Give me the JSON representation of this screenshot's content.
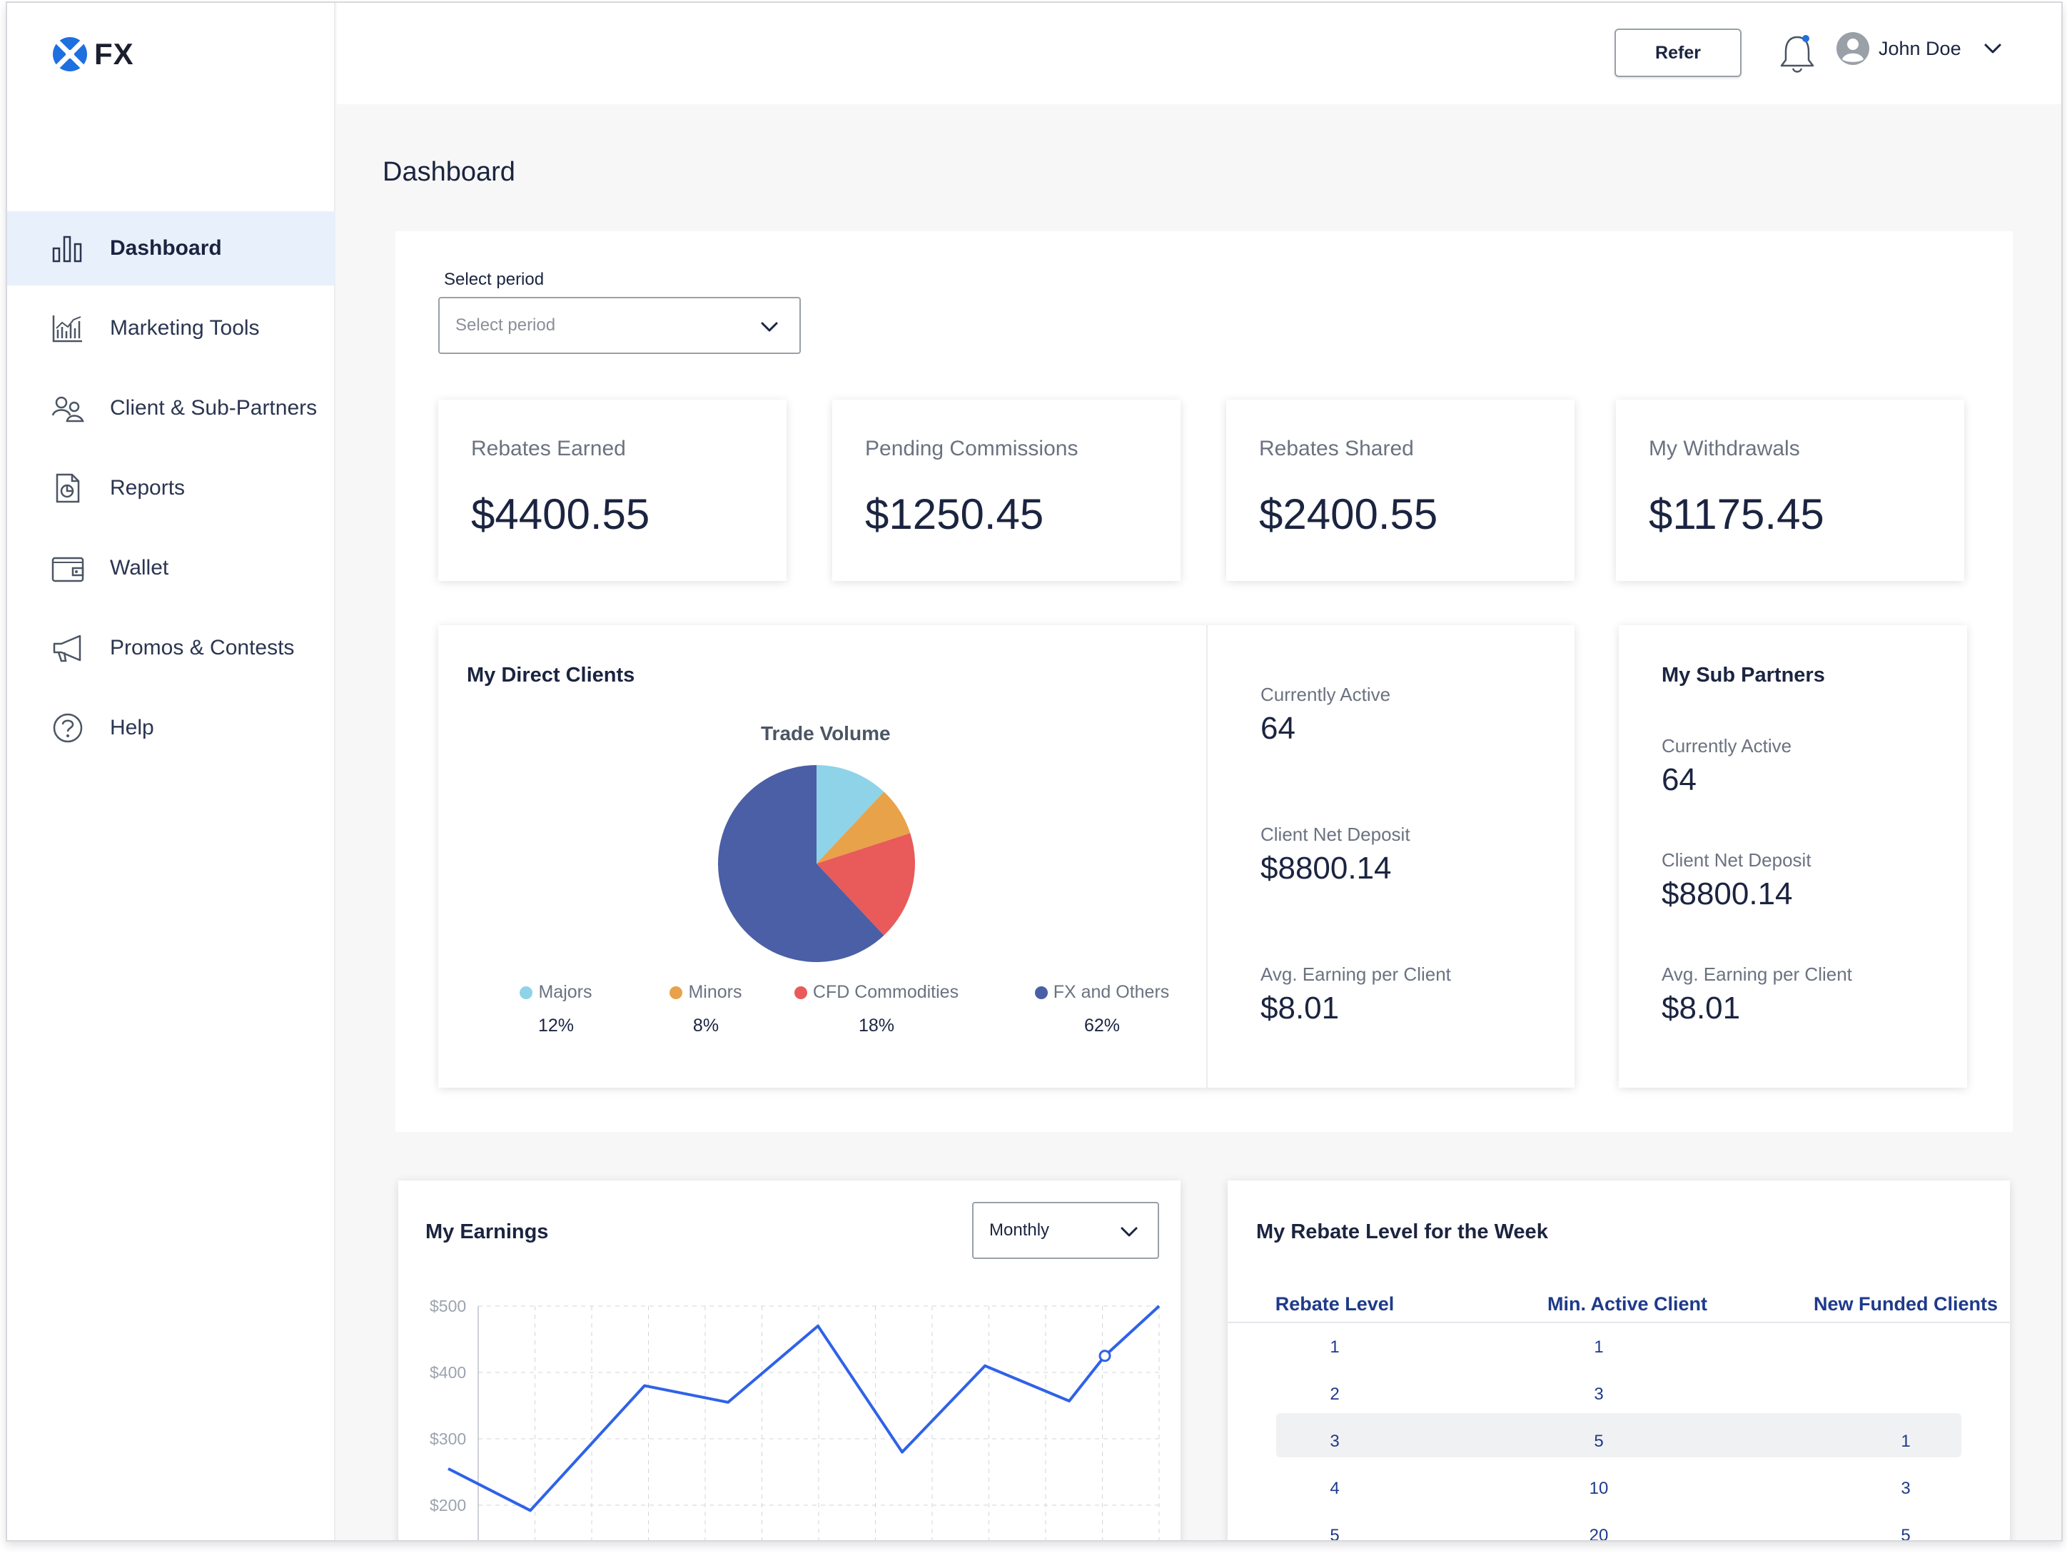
{
  "brand": {
    "logo_text": "FX",
    "accent": "#1e6fe0"
  },
  "sidebar": {
    "items": [
      {
        "label": "Dashboard",
        "icon": "bar-chart-icon",
        "active": true
      },
      {
        "label": "Marketing Tools",
        "icon": "analytics-icon",
        "active": false
      },
      {
        "label": "Client & Sub-Partners",
        "icon": "users-icon",
        "active": false
      },
      {
        "label": "Reports",
        "icon": "report-document-icon",
        "active": false
      },
      {
        "label": "Wallet",
        "icon": "wallet-icon",
        "active": false
      },
      {
        "label": "Promos & Contests",
        "icon": "megaphone-icon",
        "active": false
      },
      {
        "label": "Help",
        "icon": "help-circle-icon",
        "active": false
      }
    ]
  },
  "topbar": {
    "refer_label": "Refer",
    "user_name": "John Doe"
  },
  "page": {
    "title": "Dashboard"
  },
  "period": {
    "label": "Select period",
    "placeholder": "Select period"
  },
  "stats": [
    {
      "title": "Rebates Earned",
      "value": "$4400.55"
    },
    {
      "title": "Pending Commissions",
      "value": "$1250.45"
    },
    {
      "title": "Rebates Shared",
      "value": "$2400.55"
    },
    {
      "title": "My Withdrawals",
      "value": "$1175.45"
    }
  ],
  "direct_clients": {
    "title": "My Direct Clients",
    "chart_title": "Trade Volume",
    "legend": [
      {
        "name": "Majors",
        "pct": "12%",
        "color": "#8fd3e8"
      },
      {
        "name": "Minors",
        "pct": "8%",
        "color": "#e8a24a"
      },
      {
        "name": "CFD Commodities",
        "pct": "18%",
        "color": "#e95a5a"
      },
      {
        "name": "FX and Others",
        "pct": "62%",
        "color": "#4a5fa5"
      }
    ],
    "currently_active_label": "Currently Active",
    "currently_active": "64",
    "net_deposit_label": "Client Net Deposit",
    "net_deposit": "$8800.14",
    "avg_earning_label": "Avg. Earning per Client",
    "avg_earning": "$8.01"
  },
  "sub_partners": {
    "title": "My Sub Partners",
    "currently_active_label": "Currently Active",
    "currently_active": "64",
    "net_deposit_label": "Client Net Deposit",
    "net_deposit": "$8800.14",
    "avg_earning_label": "Avg. Earning per Client",
    "avg_earning": "$8.01"
  },
  "earnings": {
    "title": "My Earnings",
    "period_value": "Monthly"
  },
  "rebate": {
    "title": "My Rebate Level for the Week",
    "headers": [
      "Rebate Level",
      "Min. Active Client",
      "New Funded Clients"
    ],
    "rows": [
      [
        "1",
        "1",
        ""
      ],
      [
        "2",
        "3",
        ""
      ],
      [
        "3",
        "5",
        "1"
      ],
      [
        "4",
        "10",
        "3"
      ],
      [
        "5",
        "20",
        "5"
      ]
    ],
    "highlight_row": 2
  },
  "chart_data": [
    {
      "type": "pie",
      "title": "Trade Volume",
      "categories": [
        "Majors",
        "Minors",
        "CFD Commodities",
        "FX and Others"
      ],
      "values": [
        12,
        8,
        18,
        62
      ],
      "colors": [
        "#8fd3e8",
        "#e8a24a",
        "#e95a5a",
        "#4a5fa5"
      ]
    },
    {
      "type": "line",
      "title": "My Earnings",
      "yticks": [
        "$500",
        "$400",
        "$300",
        "$200"
      ],
      "ylim": [
        200,
        500
      ],
      "grid": true,
      "values": [
        255,
        192,
        380,
        355,
        470,
        280,
        410,
        357,
        425,
        500
      ],
      "highlight_index": 8,
      "color": "#2f62e8"
    }
  ]
}
